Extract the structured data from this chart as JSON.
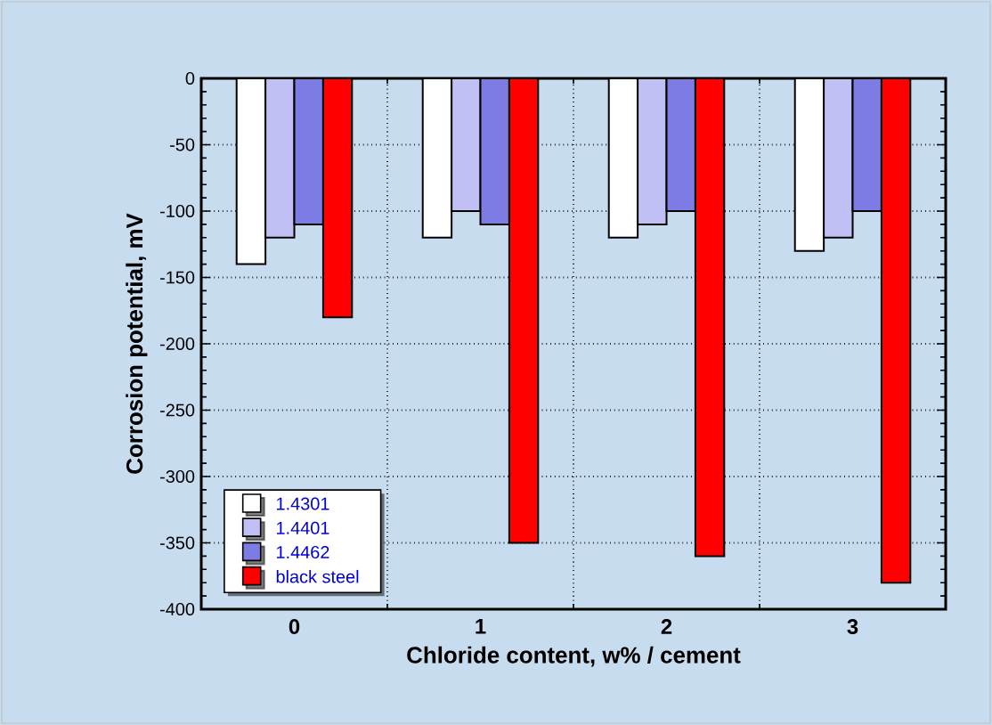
{
  "chart_data": {
    "type": "bar",
    "xlabel": "Chloride content, w% / cement",
    "ylabel": "Corrosion potential, mV",
    "categories": [
      "0",
      "1",
      "2",
      "3"
    ],
    "series": [
      {
        "name": "1.4301",
        "color": "#ffffff",
        "values": [
          -140,
          -120,
          -120,
          -130
        ]
      },
      {
        "name": "1.4401",
        "color": "#c0c0f4",
        "values": [
          -120,
          -100,
          -110,
          -120
        ]
      },
      {
        "name": "1.4462",
        "color": "#7c7ce4",
        "values": [
          -110,
          -110,
          -100,
          -100
        ]
      },
      {
        "name": "black steel",
        "color": "#ff0000",
        "values": [
          -180,
          -350,
          -360,
          -380
        ]
      }
    ],
    "ylim": [
      -400,
      0
    ],
    "yticks": [
      -400,
      -350,
      -300,
      -250,
      -200,
      -150,
      -100,
      -50,
      0
    ],
    "grid": true,
    "legend": "bottom left"
  }
}
